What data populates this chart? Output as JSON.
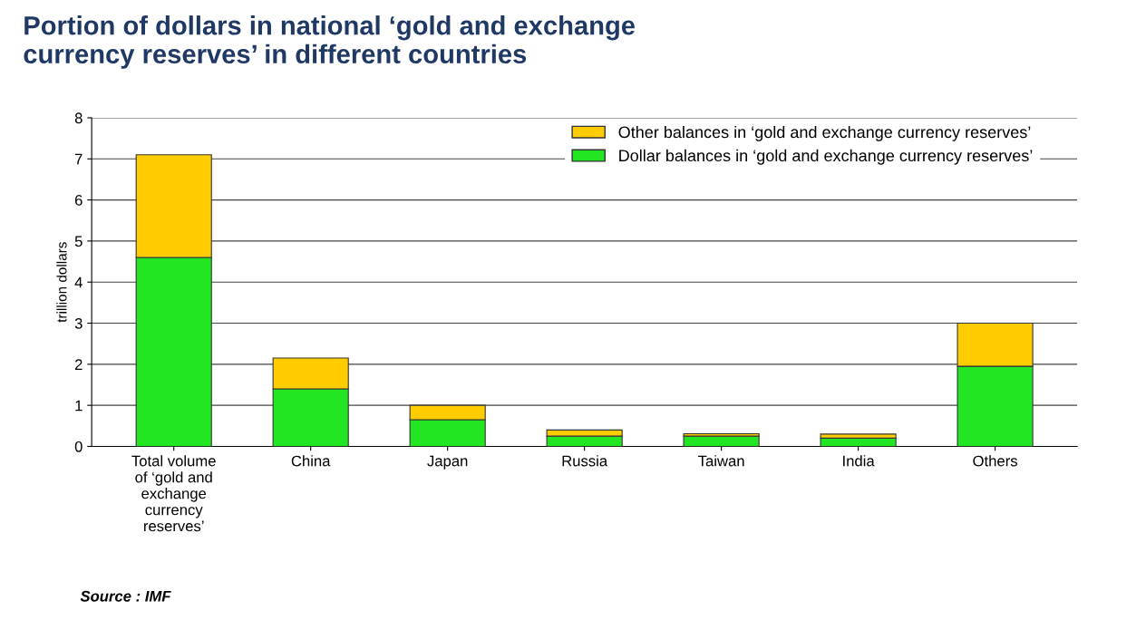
{
  "chart_data": {
    "type": "bar",
    "title": "Portion of dollars in national ‘gold and exchange\ncurrency reserves’ in different countries",
    "ylabel": "trillion dollars",
    "categories": [
      "Total volume\nof ‘gold and\nexchange\ncurrency\nreserves’",
      "China",
      "Japan",
      "Russia",
      "Taiwan",
      "India",
      "Others"
    ],
    "series": [
      {
        "name": "Dollar balances in ‘gold and exchange currency reserves’",
        "color": "#22e622",
        "values": [
          4.6,
          1.4,
          0.65,
          0.25,
          0.25,
          0.2,
          1.95
        ]
      },
      {
        "name": "Other balances in ‘gold and exchange currency reserves’",
        "color": "#ffcc00",
        "values": [
          2.5,
          0.75,
          0.35,
          0.15,
          0.06,
          0.1,
          1.05
        ]
      }
    ],
    "stacked": true,
    "ylim": [
      0,
      8
    ],
    "yticks": [
      0,
      1,
      2,
      3,
      4,
      5,
      6,
      7,
      8
    ],
    "grid": "y",
    "legend": "top right",
    "annotations": [
      "Source : IMF"
    ]
  }
}
